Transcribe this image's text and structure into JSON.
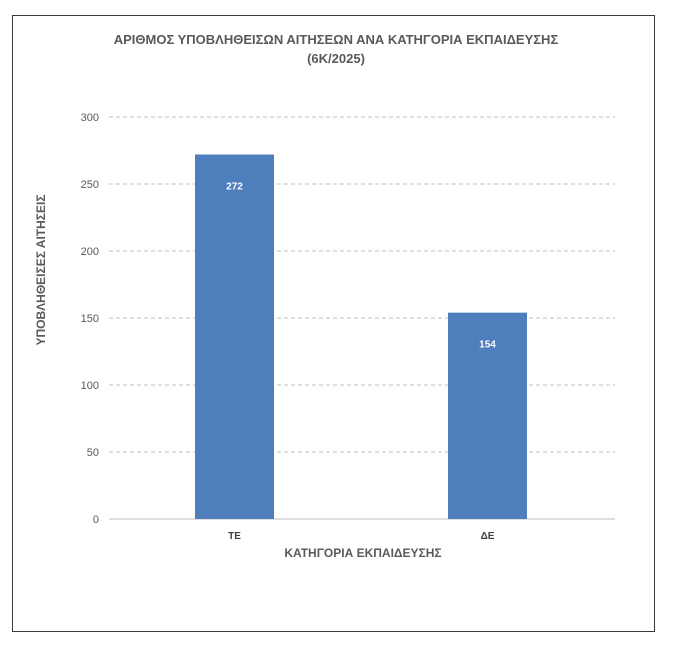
{
  "chart_data": {
    "type": "bar",
    "title_line1": "ΑΡΙΘΜΟΣ ΥΠΟΒΛΗΘΕΙΣΩΝ ΑΙΤΗΣΕΩΝ ΑΝΑ ΚΑΤΗΓΟΡΙΑ ΕΚΠΑΙΔΕΥΣΗΣ",
    "title_line2": "(6Κ/2025)",
    "xlabel": "ΚΑΤΗΓΟΡΙΑ ΕΚΠΑΙΔΕΥΣΗΣ",
    "ylabel": "ΥΠΟΒΛΗΘΕΙΣΕΣ ΑΙΤΗΣΕΙΣ",
    "categories": [
      "ΤΕ",
      "ΔΕ"
    ],
    "values": [
      272,
      154
    ],
    "data_labels": [
      "272",
      "154"
    ],
    "ylim": [
      0,
      300
    ],
    "yticks": [
      "0",
      "50",
      "100",
      "150",
      "200",
      "250",
      "300"
    ],
    "ytick_values": [
      0,
      50,
      100,
      150,
      200,
      250,
      300
    ],
    "grid": true,
    "grid_style": "dashed",
    "legend": "none",
    "bar_color": "#4f7ebd",
    "grid_color": "#bfbfbf"
  }
}
